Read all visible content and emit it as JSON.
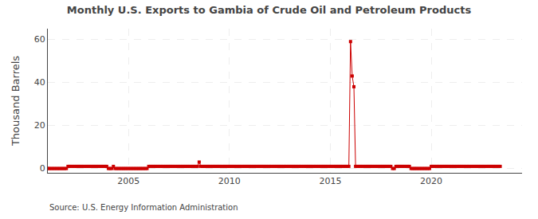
{
  "chart_data": {
    "type": "line",
    "title": "Monthly U.S. Exports to Gambia of Crude Oil and Petroleum Products",
    "ylabel": "Thousand Barrels",
    "annotations": [
      "Source: U.S. Energy Information Administration"
    ],
    "color": "#cc0000",
    "marker": "square",
    "line_style": "solid",
    "grid": true,
    "xlim": [
      2001.0,
      2024.5
    ],
    "xticks": [
      2005,
      2010,
      2015,
      2020
    ],
    "ylim": [
      -2,
      65
    ],
    "yticks": [
      0,
      20,
      40,
      60
    ],
    "x": [
      2001.0,
      2001.083,
      2001.167,
      2001.25,
      2001.333,
      2001.417,
      2001.5,
      2001.583,
      2001.667,
      2001.75,
      2001.833,
      2001.917,
      2002.0,
      2002.083,
      2002.167,
      2002.25,
      2002.333,
      2002.417,
      2002.5,
      2002.583,
      2002.667,
      2002.75,
      2002.833,
      2002.917,
      2003.0,
      2003.083,
      2003.167,
      2003.25,
      2003.333,
      2003.417,
      2003.5,
      2003.583,
      2003.667,
      2003.75,
      2003.833,
      2003.917,
      2004.0,
      2004.083,
      2004.167,
      2004.25,
      2004.333,
      2004.417,
      2004.5,
      2004.583,
      2004.667,
      2004.75,
      2004.833,
      2004.917,
      2005.0,
      2005.083,
      2005.167,
      2005.25,
      2005.333,
      2005.417,
      2005.5,
      2005.583,
      2005.667,
      2005.75,
      2005.833,
      2005.917,
      2006.0,
      2006.083,
      2006.167,
      2006.25,
      2006.333,
      2006.417,
      2006.5,
      2006.583,
      2006.667,
      2006.75,
      2006.833,
      2006.917,
      2007.0,
      2007.083,
      2007.167,
      2007.25,
      2007.333,
      2007.417,
      2007.5,
      2007.583,
      2007.667,
      2007.75,
      2007.833,
      2007.917,
      2008.0,
      2008.083,
      2008.167,
      2008.25,
      2008.333,
      2008.417,
      2008.5,
      2008.583,
      2008.667,
      2008.75,
      2008.833,
      2008.917,
      2009.0,
      2009.083,
      2009.167,
      2009.25,
      2009.333,
      2009.417,
      2009.5,
      2009.583,
      2009.667,
      2009.75,
      2009.833,
      2009.917,
      2010.0,
      2010.083,
      2010.167,
      2010.25,
      2010.333,
      2010.417,
      2010.5,
      2010.583,
      2010.667,
      2010.75,
      2010.833,
      2010.917,
      2011.0,
      2011.083,
      2011.167,
      2011.25,
      2011.333,
      2011.417,
      2011.5,
      2011.583,
      2011.667,
      2011.75,
      2011.833,
      2011.917,
      2012.0,
      2012.083,
      2012.167,
      2012.25,
      2012.333,
      2012.417,
      2012.5,
      2012.583,
      2012.667,
      2012.75,
      2012.833,
      2012.917,
      2013.0,
      2013.083,
      2013.167,
      2013.25,
      2013.333,
      2013.417,
      2013.5,
      2013.583,
      2013.667,
      2013.75,
      2013.833,
      2013.917,
      2014.0,
      2014.083,
      2014.167,
      2014.25,
      2014.333,
      2014.417,
      2014.5,
      2014.583,
      2014.667,
      2014.75,
      2014.833,
      2014.917,
      2015.0,
      2015.083,
      2015.167,
      2015.25,
      2015.333,
      2015.417,
      2015.5,
      2015.583,
      2015.667,
      2015.75,
      2015.833,
      2015.917,
      2016.0,
      2016.083,
      2016.167,
      2016.25,
      2016.333,
      2016.417,
      2016.5,
      2016.583,
      2016.667,
      2016.75,
      2016.833,
      2016.917,
      2017.0,
      2017.083,
      2017.167,
      2017.25,
      2017.333,
      2017.417,
      2017.5,
      2017.583,
      2017.667,
      2017.75,
      2017.833,
      2017.917,
      2018.0,
      2018.083,
      2018.167,
      2018.25,
      2018.333,
      2018.417,
      2018.5,
      2018.583,
      2018.667,
      2018.75,
      2018.833,
      2018.917,
      2019.0,
      2019.083,
      2019.167,
      2019.25,
      2019.333,
      2019.417,
      2019.5,
      2019.583,
      2019.667,
      2019.75,
      2019.833,
      2019.917,
      2020.0,
      2020.083,
      2020.167,
      2020.25,
      2020.333,
      2020.417,
      2020.5,
      2020.583,
      2020.667,
      2020.75,
      2020.833,
      2020.917,
      2021.0,
      2021.083,
      2021.167,
      2021.25,
      2021.333,
      2021.417,
      2021.5,
      2021.583,
      2021.667,
      2021.75,
      2021.833,
      2021.917,
      2022.0,
      2022.083,
      2022.167,
      2022.25,
      2022.333,
      2022.417,
      2022.5,
      2022.583,
      2022.667,
      2022.75,
      2022.833,
      2022.917,
      2023.0,
      2023.083,
      2023.167,
      2023.25,
      2023.333,
      2023.417
    ],
    "values": [
      0,
      0,
      0,
      0,
      0,
      0,
      0,
      0,
      0,
      0,
      0,
      0,
      1,
      1,
      1,
      1,
      1,
      1,
      1,
      1,
      1,
      1,
      1,
      1,
      1,
      1,
      1,
      1,
      1,
      1,
      1,
      1,
      1,
      1,
      1,
      1,
      0,
      0,
      0,
      1,
      0,
      0,
      0,
      0,
      0,
      0,
      0,
      0,
      0,
      0,
      0,
      0,
      0,
      0,
      0,
      0,
      0,
      0,
      0,
      0,
      1,
      1,
      1,
      1,
      1,
      1,
      1,
      1,
      1,
      1,
      1,
      1,
      1,
      1,
      1,
      1,
      1,
      1,
      1,
      1,
      1,
      1,
      1,
      1,
      1,
      1,
      1,
      1,
      1,
      1,
      3,
      1,
      1,
      1,
      1,
      1,
      1,
      1,
      1,
      1,
      1,
      1,
      1,
      1,
      1,
      1,
      1,
      1,
      1,
      1,
      1,
      1,
      1,
      1,
      1,
      1,
      1,
      1,
      1,
      1,
      1,
      1,
      1,
      1,
      1,
      1,
      1,
      1,
      1,
      1,
      1,
      1,
      1,
      1,
      1,
      1,
      1,
      1,
      1,
      1,
      1,
      1,
      1,
      1,
      1,
      1,
      1,
      1,
      1,
      1,
      1,
      1,
      1,
      1,
      1,
      1,
      1,
      1,
      1,
      1,
      1,
      1,
      1,
      1,
      1,
      1,
      1,
      1,
      1,
      1,
      1,
      1,
      1,
      1,
      1,
      1,
      1,
      1,
      1,
      1,
      59,
      43,
      38,
      1,
      1,
      1,
      1,
      1,
      1,
      1,
      1,
      1,
      1,
      1,
      1,
      1,
      1,
      1,
      1,
      1,
      1,
      1,
      1,
      1,
      1,
      0,
      0,
      1,
      1,
      1,
      1,
      1,
      1,
      1,
      1,
      1,
      0,
      0,
      0,
      0,
      0,
      0,
      0,
      0,
      0,
      0,
      0,
      0,
      1,
      1,
      1,
      1,
      1,
      1,
      1,
      1,
      1,
      1,
      1,
      1,
      1,
      1,
      1,
      1,
      1,
      1,
      1,
      1,
      1,
      1,
      1,
      1,
      1,
      1,
      1,
      1,
      1,
      1,
      1,
      1,
      1,
      1,
      1,
      1,
      1,
      1,
      1,
      1,
      1,
      1
    ]
  }
}
